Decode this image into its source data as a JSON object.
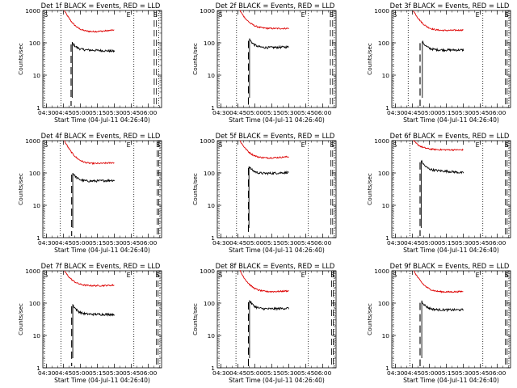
{
  "layout": {
    "rows": 3,
    "cols": 3
  },
  "colors": {
    "events": "#000000",
    "lld": "#dd0000",
    "axis": "#000000",
    "marker": "#000000"
  },
  "chart_data": [
    {
      "type": "line",
      "title": "Det 1f BLACK = Events, RED = LLD",
      "xlabel": "Start Time (04-Jul-11 04:26:40)",
      "ylabel": "Counts/sec",
      "yscale": "log",
      "ylim": [
        1,
        1000
      ],
      "y_ticks": [
        "1",
        "10",
        "100",
        "1000"
      ],
      "x_tick_labels": [
        "04:30",
        "04:45",
        "05:00",
        "05:15",
        "05:30",
        "05:45",
        "06:00"
      ],
      "xlim_minutes": [
        0,
        105
      ],
      "x_tick_minutes": [
        3.33,
        18.33,
        33.33,
        48.33,
        63.33,
        78.33,
        93.33
      ],
      "legend": "none",
      "markers": {
        "S_dotted_min": 1.5,
        "S_label": "S",
        "dotted_2_min": 16.0,
        "dashed_min": 25.0,
        "dotted_3_min": 80.5,
        "E_label": "E",
        "E_label_min": 74,
        "dashed_end_min": 98.5,
        "dashed_end2_min": 100.5,
        "dotted_end_min": 102.5,
        "S_end_label": "S"
      },
      "events_line": {
        "start_min": 26.0,
        "y_start": 100,
        "y_valley": 60,
        "y_end": 55
      },
      "lld_line": {
        "start_min": 19.0,
        "y_start": 1000,
        "y_valley": 200,
        "y_end": 250
      },
      "series": [
        {
          "name": "Events"
        },
        {
          "name": "LLD"
        }
      ]
    },
    {
      "type": "line",
      "title": "Det 2f BLACK = Events, RED = LLD",
      "xlabel": "Start Time (04-Jul-11 04:26:40)",
      "ylabel": "Counts/sec",
      "yscale": "log",
      "ylim": [
        1,
        1000
      ],
      "y_ticks": [
        "1",
        "10",
        "100",
        "1000"
      ],
      "x_tick_labels": [
        "04:30",
        "04:45",
        "05:00",
        "05:15",
        "05:30",
        "05:45",
        "06:00"
      ],
      "xlim_minutes": [
        0,
        105
      ],
      "x_tick_minutes": [
        3.33,
        18.33,
        33.33,
        48.33,
        63.33,
        78.33,
        93.33
      ],
      "legend": "none",
      "markers": {
        "S_dotted_min": 1.5,
        "S_label": "S",
        "dotted_2_min": 17.0,
        "dashed_min": 27.5,
        "dotted_3_min": 80.5,
        "E_label": "E",
        "E_label_min": 74,
        "dashed_end_min": 100.0,
        "dashed_end2_min": 102.0,
        "dotted_end_min": 103.5,
        "S_end_label": "S"
      },
      "events_line": {
        "start_min": 28.5,
        "y_start": 130,
        "y_valley": 70,
        "y_end": 75
      },
      "lld_line": {
        "start_min": 20.0,
        "y_start": 1000,
        "y_valley": 270,
        "y_end": 280
      },
      "series": [
        {
          "name": "Events"
        },
        {
          "name": "LLD"
        }
      ]
    },
    {
      "type": "line",
      "title": "Det 3f BLACK = Events, RED = LLD",
      "xlabel": "Start Time (04-Jul-11 04:26:40)",
      "ylabel": "Counts/sec",
      "yscale": "log",
      "ylim": [
        1,
        1000
      ],
      "y_ticks": [
        "1",
        "10",
        "100",
        "1000"
      ],
      "x_tick_labels": [
        "04:30",
        "04:45",
        "05:00",
        "05:15",
        "05:30",
        "05:45",
        "06:00"
      ],
      "xlim_minutes": [
        0,
        105
      ],
      "x_tick_minutes": [
        3.33,
        18.33,
        33.33,
        48.33,
        63.33,
        78.33,
        93.33
      ],
      "legend": "none",
      "markers": {
        "S_dotted_min": 1.5,
        "S_label": "S",
        "dotted_2_min": 14.5,
        "dashed_min": 25.0,
        "dotted_3_min": 80.5,
        "E_label": "E",
        "E_label_min": 74,
        "dashed_end_min": 100.5,
        "dashed_end2_min": 102.0,
        "dotted_end_min": 103.5,
        "S_end_label": "S"
      },
      "events_line": {
        "start_min": 27.0,
        "y_start": 110,
        "y_valley": 60,
        "y_end": 60
      },
      "lld_line": {
        "start_min": 19.0,
        "y_start": 1000,
        "y_valley": 230,
        "y_end": 250
      },
      "series": [
        {
          "name": "Events"
        },
        {
          "name": "LLD"
        }
      ]
    },
    {
      "type": "line",
      "title": "Det 4f BLACK = Events, RED = LLD",
      "xlabel": "Start Time (04-Jul-11 04:26:40)",
      "ylabel": "Counts/sec",
      "yscale": "log",
      "ylim": [
        1,
        1000
      ],
      "y_ticks": [
        "1",
        "10",
        "100",
        "1000"
      ],
      "x_tick_labels": [
        "04:30",
        "04:45",
        "05:00",
        "05:15",
        "05:30",
        "05:45",
        "06:00"
      ],
      "xlim_minutes": [
        0,
        105
      ],
      "x_tick_minutes": [
        3.33,
        18.33,
        33.33,
        48.33,
        63.33,
        78.33,
        93.33
      ],
      "legend": "none",
      "markers": {
        "S_dotted_min": 1.5,
        "S_label": "S",
        "dotted_2_min": 15.5,
        "dashed_min": 25.5,
        "dotted_3_min": 80.5,
        "E_label": "E",
        "E_label_min": 74,
        "dashed_end_min": 101.0,
        "dashed_end2_min": 102.5,
        "dotted_end_min": 103.5,
        "S_end_label": "S"
      },
      "events_line": {
        "start_min": 26.5,
        "y_start": 100,
        "y_valley": 55,
        "y_end": 60
      },
      "lld_line": {
        "start_min": 19.0,
        "y_start": 1000,
        "y_valley": 180,
        "y_end": 210
      },
      "series": [
        {
          "name": "Events"
        },
        {
          "name": "LLD"
        }
      ]
    },
    {
      "type": "line",
      "title": "Det 5f BLACK = Events, RED = LLD",
      "xlabel": "Start Time (04-Jul-11 04:26:40)",
      "ylabel": "Counts/sec",
      "yscale": "log",
      "ylim": [
        1,
        1000
      ],
      "y_ticks": [
        "1",
        "10",
        "100",
        "1000"
      ],
      "x_tick_labels": [
        "04:30",
        "04:45",
        "05:00",
        "05:15",
        "05:30",
        "05:45",
        "06:00"
      ],
      "xlim_minutes": [
        0,
        105
      ],
      "x_tick_minutes": [
        3.33,
        18.33,
        33.33,
        48.33,
        63.33,
        78.33,
        93.33
      ],
      "legend": "none",
      "markers": {
        "S_dotted_min": 1.5,
        "S_label": "S",
        "dotted_2_min": 17.0,
        "dashed_min": 27.5,
        "dotted_3_min": 80.5,
        "E_label": "E",
        "E_label_min": 74,
        "dashed_end_min": 100.5,
        "dashed_end2_min": 102.0,
        "dotted_end_min": 103.5,
        "S_end_label": "S"
      },
      "events_line": {
        "start_min": 28.0,
        "y_start": 160,
        "y_valley": 95,
        "y_end": 105
      },
      "lld_line": {
        "start_min": 20.0,
        "y_start": 1000,
        "y_valley": 270,
        "y_end": 320
      },
      "series": [
        {
          "name": "Events"
        },
        {
          "name": "LLD"
        }
      ]
    },
    {
      "type": "line",
      "title": "Det 6f BLACK = Events, RED = LLD",
      "xlabel": "Start Time (04-Jul-11 04:26:40)",
      "ylabel": "Counts/sec",
      "yscale": "log",
      "ylim": [
        1,
        1000
      ],
      "y_ticks": [
        "1",
        "10",
        "100",
        "1000"
      ],
      "x_tick_labels": [
        "04:30",
        "04:45",
        "05:00",
        "05:15",
        "05:30",
        "05:45",
        "06:00"
      ],
      "xlim_minutes": [
        0,
        105
      ],
      "x_tick_minutes": [
        3.33,
        18.33,
        33.33,
        48.33,
        63.33,
        78.33,
        93.33
      ],
      "legend": "none",
      "markers": {
        "S_dotted_min": 1.5,
        "S_label": "S",
        "dotted_2_min": 16.0,
        "dashed_min": 25.0,
        "dotted_3_min": 80.5,
        "E_label": "E",
        "E_label_min": 74,
        "dashed_end_min": 100.5,
        "dashed_end2_min": 102.0,
        "dotted_end_min": 103.5,
        "S_end_label": "S"
      },
      "events_line": {
        "start_min": 26.0,
        "y_start": 240,
        "y_valley": 120,
        "y_end": 100
      },
      "lld_line": {
        "start_min": 19.0,
        "y_start": 1000,
        "y_valley": 520,
        "y_end": 520
      },
      "series": [
        {
          "name": "Events"
        },
        {
          "name": "LLD"
        }
      ]
    },
    {
      "type": "line",
      "title": "Det 7f BLACK = Events, RED = LLD",
      "xlabel": "Start Time (04-Jul-11 04:26:40)",
      "ylabel": "Counts/sec",
      "yscale": "log",
      "ylim": [
        1,
        1000
      ],
      "y_ticks": [
        "1",
        "10",
        "100",
        "1000"
      ],
      "x_tick_labels": [
        "04:30",
        "04:45",
        "05:00",
        "05:15",
        "05:30",
        "05:45",
        "06:00"
      ],
      "xlim_minutes": [
        0,
        105
      ],
      "x_tick_minutes": [
        3.33,
        18.33,
        33.33,
        48.33,
        63.33,
        78.33,
        93.33
      ],
      "legend": "none",
      "markers": {
        "S_dotted_min": 1.5,
        "S_label": "S",
        "dotted_2_min": 16.0,
        "dashed_min": 25.5,
        "dotted_3_min": 80.5,
        "E_label": "E",
        "E_label_min": 74,
        "dashed_end_min": 100.5,
        "dashed_end2_min": 102.0,
        "dotted_end_min": 103.5,
        "S_end_label": "S"
      },
      "events_line": {
        "start_min": 26.5,
        "y_start": 90,
        "y_valley": 45,
        "y_end": 45
      },
      "lld_line": {
        "start_min": 19.0,
        "y_start": 1000,
        "y_valley": 330,
        "y_end": 360
      },
      "series": [
        {
          "name": "Events"
        },
        {
          "name": "LLD"
        }
      ]
    },
    {
      "type": "line",
      "title": "Det 8f BLACK = Events, RED = LLD",
      "xlabel": "Start Time (04-Jul-11 04:26:40)",
      "ylabel": "Counts/sec",
      "yscale": "log",
      "ylim": [
        1,
        1000
      ],
      "y_ticks": [
        "1",
        "10",
        "100",
        "1000"
      ],
      "x_tick_labels": [
        "04:30",
        "04:45",
        "05:00",
        "05:15",
        "05:30",
        "05:45",
        "06:00"
      ],
      "xlim_minutes": [
        0,
        105
      ],
      "x_tick_minutes": [
        3.33,
        18.33,
        33.33,
        48.33,
        63.33,
        78.33,
        93.33
      ],
      "legend": "none",
      "markers": {
        "S_dotted_min": 1.5,
        "S_label": "S",
        "dotted_2_min": 16.5,
        "dashed_min": 27.5,
        "dotted_3_min": 80.5,
        "E_label": "E",
        "E_label_min": 74,
        "dashed_end_min": 101.0,
        "dashed_end2_min": 102.5,
        "dotted_end_min": 103.5,
        "S_end_label": "S"
      },
      "events_line": {
        "start_min": 28.5,
        "y_start": 120,
        "y_valley": 65,
        "y_end": 70
      },
      "lld_line": {
        "start_min": 20.0,
        "y_start": 1000,
        "y_valley": 210,
        "y_end": 240
      },
      "series": [
        {
          "name": "Events"
        },
        {
          "name": "LLD"
        }
      ]
    },
    {
      "type": "line",
      "title": "Det 9f BLACK = Events, RED = LLD",
      "xlabel": "Start Time (04-Jul-11 04:26:40)",
      "ylabel": "Counts/sec",
      "yscale": "log",
      "ylim": [
        1,
        1000
      ],
      "y_ticks": [
        "1",
        "10",
        "100",
        "1000"
      ],
      "x_tick_labels": [
        "04:30",
        "04:45",
        "05:00",
        "05:15",
        "05:30",
        "05:45",
        "06:00"
      ],
      "xlim_minutes": [
        0,
        105
      ],
      "x_tick_minutes": [
        3.33,
        18.33,
        33.33,
        48.33,
        63.33,
        78.33,
        93.33
      ],
      "legend": "none",
      "markers": {
        "S_dotted_min": 1.5,
        "S_label": "S",
        "dotted_2_min": 16.0,
        "dashed_min": 25.0,
        "dotted_3_min": 80.5,
        "E_label": "E",
        "E_label_min": 74,
        "dashed_end_min": 100.5,
        "dashed_end2_min": 102.0,
        "dotted_end_min": 103.5,
        "S_end_label": "S"
      },
      "events_line": {
        "start_min": 26.5,
        "y_start": 115,
        "y_valley": 62,
        "y_end": 62
      },
      "lld_line": {
        "start_min": 19.5,
        "y_start": 1000,
        "y_valley": 210,
        "y_end": 230
      },
      "series": [
        {
          "name": "Events"
        },
        {
          "name": "LLD"
        }
      ]
    }
  ]
}
